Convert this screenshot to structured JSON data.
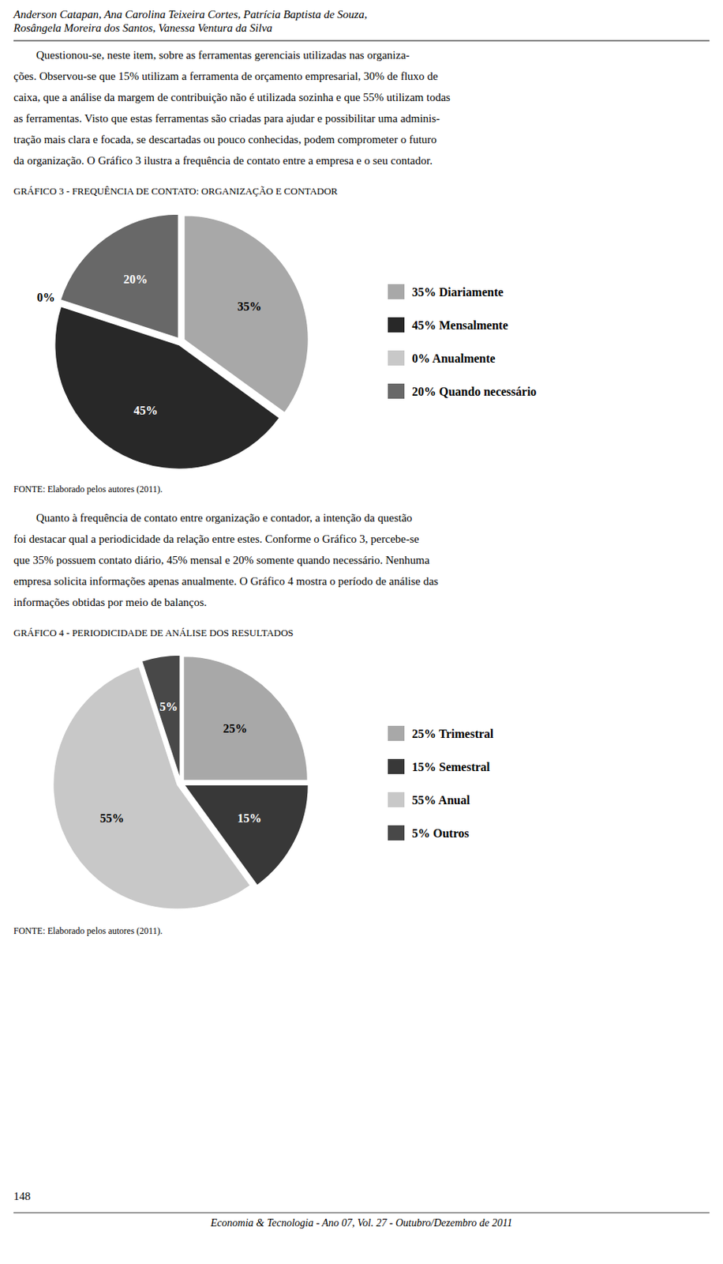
{
  "header_lines": [
    "Anderson Catapan, Ana Carolina Teixeira Cortes, Patrícia Baptista de Souza,",
    "Rosângela Moreira dos Santos, Vanessa Ventura da Silva"
  ],
  "body_text_lines": [
    "        Questionou-se, neste item, sobre as ferramentas gerenciais utilizadas nas organiza-",
    "ções. Observou-se que 15% utilizam a ferramenta de orçamento empresarial, 30% de fluxo de",
    "caixa, que a análise da margem de contribuição não é utilizada sozinha e que 55% utilizam todas",
    "as ferramentas. Visto que estas ferramentas são criadas para ajudar e possibilitar uma adminis-",
    "tração mais clara e focada, se descartadas ou pouco conhecidas, podem comprometer o futuro",
    "da organização. O Gráfico 3 ilustra a frequência de contato entre a empresa e o seu contador."
  ],
  "body_text2_lines": [
    "        Quanto à frequência de contato entre organização e contador, a intenção da questão",
    "foi destacar qual a periodicidade da relação entre estes. Conforme o Gráfico 3, percebe-se",
    "que 35% possuem contato diário, 45% mensal e 20% somente quando necessário. Nenhuma",
    "empresa solicita informações apenas anualmente. O Gráfico 4 mostra o período de análise das",
    "informações obtidas por meio de balanços."
  ],
  "page_number": "148",
  "footer_text": "Economia & Tecnologia - Ano 07, Vol. 27 - Outubro/Dezembro de 2011",
  "chart_data": [
    {
      "type": "pie",
      "title": "GRÁFICO 3 - FREQUÊNCIA DE CONTATO: ORGANIZAÇÃO E CONTADOR",
      "categories": [
        "35% Diariamente",
        "45% Mensalmente",
        "0% Anualmente",
        "20% Quando necessário"
      ],
      "values": [
        35,
        45,
        0.001,
        20
      ],
      "value_labels": [
        "35%",
        "45%",
        "0%",
        "20%"
      ],
      "colors": [
        "#a8a8a8",
        "#282828",
        "#c8c8c8",
        "#686868"
      ],
      "data_labels": true,
      "legend": "right",
      "annotations": [
        "FONTE: Elaborado pelos autores (2011)."
      ]
    },
    {
      "type": "pie",
      "title": "GRÁFICO 4 - PERIODICIDADE DE ANÁLISE DOS RESULTADOS",
      "categories": [
        "25% Trimestral",
        "15% Semestral",
        "55% Anual",
        "5% Outros"
      ],
      "values": [
        25,
        15,
        55,
        5
      ],
      "value_labels": [
        "25%",
        "15%",
        "55%",
        "5%"
      ],
      "colors": [
        "#a8a8a8",
        "#383838",
        "#c8c8c8",
        "#484848"
      ],
      "data_labels": true,
      "legend": "right",
      "annotations": [
        "FONTE: Elaborado pelos autores (2011)."
      ]
    }
  ]
}
